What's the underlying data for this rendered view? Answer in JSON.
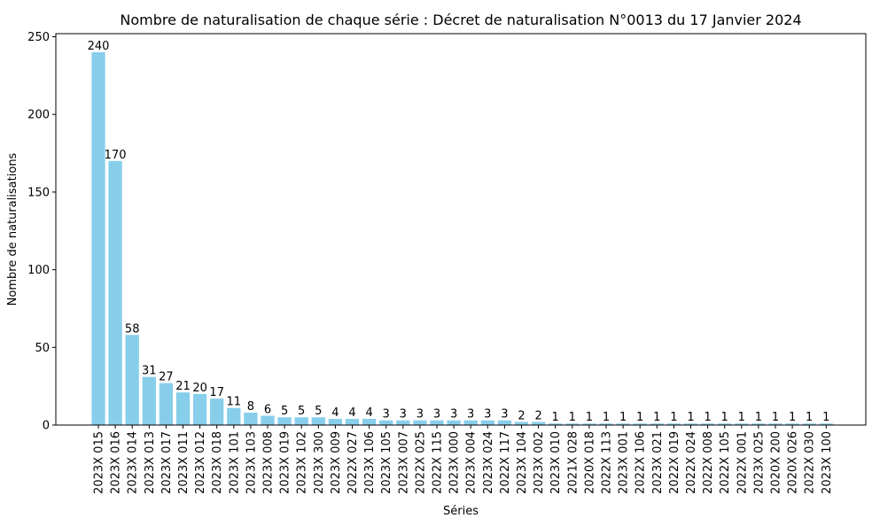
{
  "chart_data": {
    "type": "bar",
    "title": "Nombre de naturalisation de chaque série : Décret de naturalisation N°0013 du 17 Janvier 2024",
    "xlabel": "Séries",
    "ylabel": "Nombre de naturalisations",
    "ylim": [
      0,
      252
    ],
    "yticks": [
      0,
      50,
      100,
      150,
      200,
      250
    ],
    "grid": false,
    "bar_color": "#87ceeb",
    "categories": [
      "2023X 015",
      "2023X 016",
      "2023X 014",
      "2023X 013",
      "2023X 017",
      "2023X 011",
      "2023X 012",
      "2023X 018",
      "2023X 101",
      "2023X 103",
      "2023X 008",
      "2023X 019",
      "2023X 102",
      "2023X 300",
      "2023X 009",
      "2022X 027",
      "2023X 106",
      "2023X 105",
      "2023X 007",
      "2022X 025",
      "2022X 115",
      "2023X 000",
      "2023X 004",
      "2023X 024",
      "2022X 117",
      "2023X 104",
      "2023X 002",
      "2023X 010",
      "2021X 028",
      "2020X 018",
      "2022X 113",
      "2023X 001",
      "2022X 106",
      "2023X 021",
      "2022X 019",
      "2022X 024",
      "2022X 008",
      "2022X 105",
      "2022X 001",
      "2023X 025",
      "2020X 200",
      "2020X 026",
      "2022X 030",
      "2023X 100"
    ],
    "values": [
      240,
      170,
      58,
      31,
      27,
      21,
      20,
      17,
      11,
      8,
      6,
      5,
      5,
      5,
      4,
      4,
      4,
      3,
      3,
      3,
      3,
      3,
      3,
      3,
      3,
      2,
      2,
      1,
      1,
      1,
      1,
      1,
      1,
      1,
      1,
      1,
      1,
      1,
      1,
      1,
      1,
      1,
      1,
      1
    ]
  }
}
